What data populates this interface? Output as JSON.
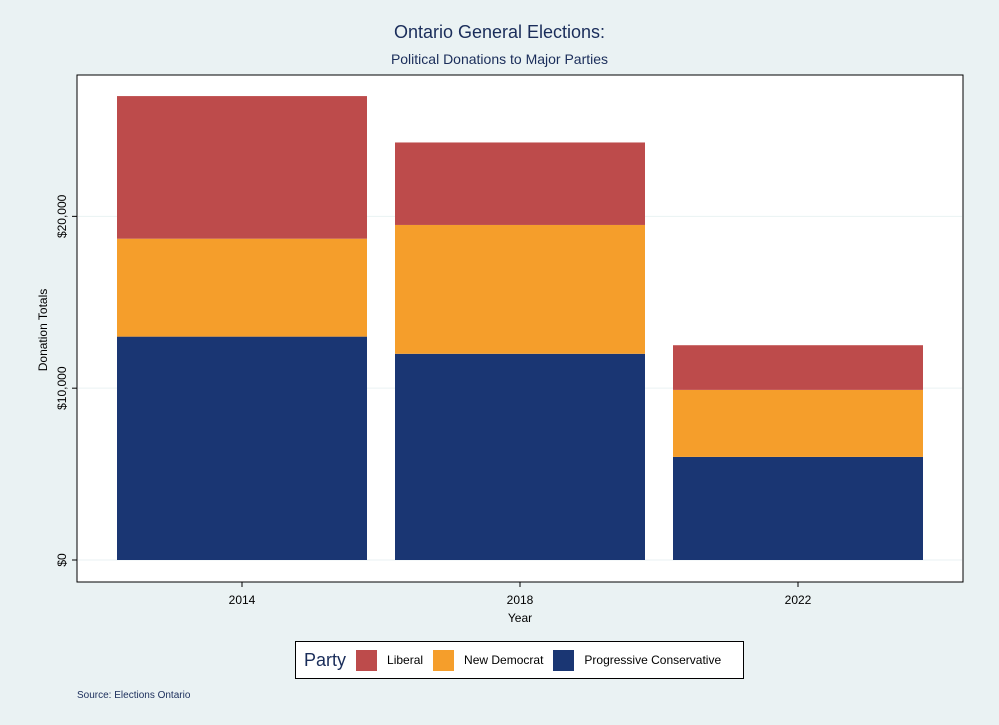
{
  "chart_data": {
    "type": "bar",
    "stacked": true,
    "title": "Ontario General Elections:",
    "subtitle": "Political Donations to Major Parties",
    "xlabel": "Year",
    "ylabel": "Donation Totals",
    "categories": [
      "2014",
      "2018",
      "2022"
    ],
    "ylim": [
      0,
      27000
    ],
    "yticks": [
      {
        "value": 0,
        "label": "$0"
      },
      {
        "value": 10000,
        "label": "$10,000"
      },
      {
        "value": 20000,
        "label": "$20,000"
      }
    ],
    "grid": true,
    "legend_title": "Party",
    "legend_position": "bottom",
    "series": [
      {
        "name": "Progressive Conservative",
        "color": "#1a3673",
        "values": [
          13000,
          12000,
          6000
        ]
      },
      {
        "name": "New Democrat",
        "color": "#f59e2b",
        "values": [
          5700,
          7500,
          3900
        ]
      },
      {
        "name": "Liberal",
        "color": "#bd4b4b",
        "values": [
          8300,
          4800,
          2600
        ]
      }
    ],
    "source": "Source: Elections Ontario"
  }
}
